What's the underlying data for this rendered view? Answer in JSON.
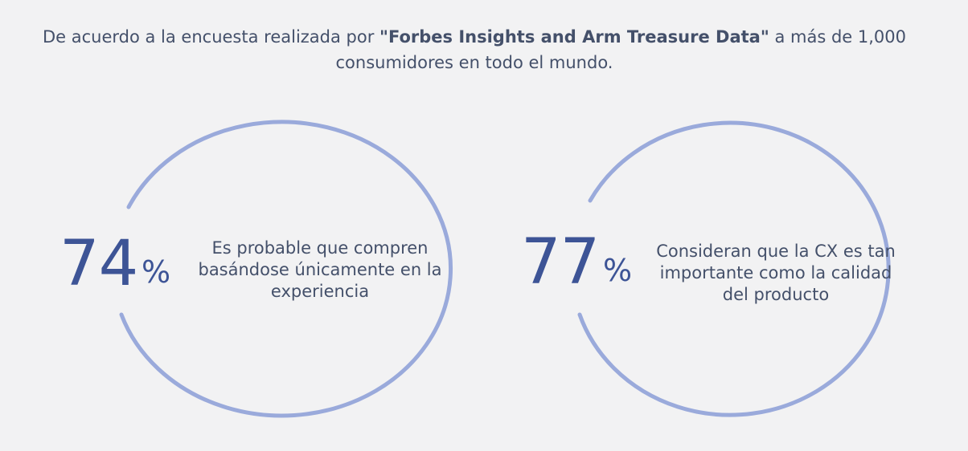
{
  "header": {
    "intro_before": "De acuerdo a la encuesta realizada por ",
    "intro_bold": "\"Forbes Insights and Arm Treasure Data\"",
    "intro_after": " a más de 1,000 consumidores en todo el mundo."
  },
  "stats": [
    {
      "value": "74",
      "unit": "%",
      "description": "Es probable que compren basándose únicamente en la experiencia"
    },
    {
      "value": "77",
      "unit": "%",
      "description": "Consideran que la CX es tan importante como la calidad del producto"
    }
  ],
  "colors": {
    "background": "#f2f2f3",
    "text": "#44506a",
    "number": "#3d5496",
    "ring": "#9aaadb"
  }
}
